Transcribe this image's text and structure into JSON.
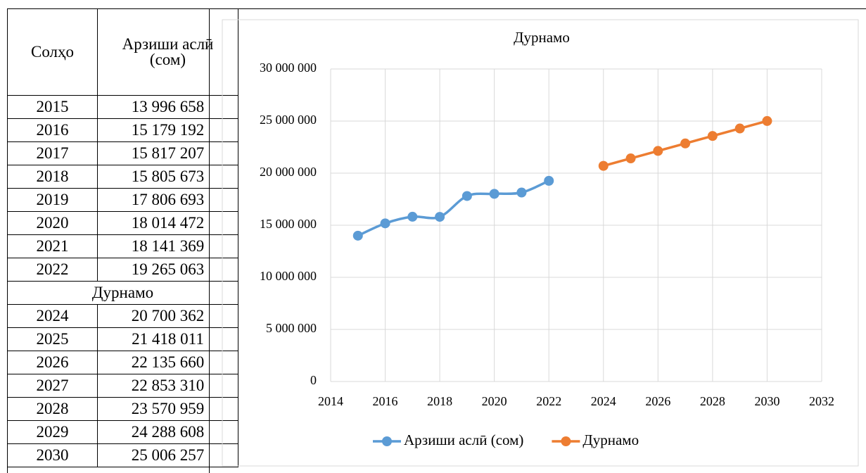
{
  "table": {
    "header": [
      "Солҳо",
      "Арзиши аслӣ (сом)"
    ],
    "rows": [
      [
        "2015",
        "13 996 658"
      ],
      [
        "2016",
        "15 179 192"
      ],
      [
        "2017",
        "15 817 207"
      ],
      [
        "2018",
        "15 805 673"
      ],
      [
        "2019",
        "17 806 693"
      ],
      [
        "2020",
        "18 014 472"
      ],
      [
        "2021",
        "18 141 369"
      ],
      [
        "2022",
        "19 265 063"
      ]
    ],
    "section": "Дурнамо",
    "forecast_rows": [
      [
        "2024",
        "20 700 362"
      ],
      [
        "2025",
        "21 418 011"
      ],
      [
        "2026",
        "22 135 660"
      ],
      [
        "2027",
        "22 853 310"
      ],
      [
        "2028",
        "23 570 959"
      ],
      [
        "2029",
        "24 288 608"
      ],
      [
        "2030",
        "25 006 257"
      ]
    ]
  },
  "chart_data": {
    "type": "line",
    "title": "Дурнамо",
    "xlim": [
      2014,
      2032
    ],
    "xticks": [
      2014,
      2016,
      2018,
      2020,
      2022,
      2024,
      2026,
      2028,
      2030,
      2032
    ],
    "ylim": [
      0,
      30000000
    ],
    "yticks": [
      0,
      {
        "value": 5000000,
        "label": "5 000 000"
      },
      {
        "value": 10000000,
        "label": "10 000 000"
      },
      {
        "value": 15000000,
        "label": "15 000 000"
      },
      {
        "value": 20000000,
        "label": "20 000 000"
      },
      {
        "value": 25000000,
        "label": "25 000 000"
      },
      {
        "value": 30000000,
        "label": "30 000 000"
      }
    ],
    "grid": true,
    "legend": "bottom",
    "smooth": true,
    "series": [
      {
        "name": "Арзиши аслӣ (сом)",
        "color": "#5b9bd5",
        "x": [
          2015,
          2016,
          2017,
          2018,
          2019,
          2020,
          2021,
          2022
        ],
        "values": [
          13996658,
          15179192,
          15817207,
          15805673,
          17806693,
          18014472,
          18141369,
          19265063
        ]
      },
      {
        "name": "Дурнамо",
        "color": "#ed7d31",
        "x": [
          2024,
          2025,
          2026,
          2027,
          2028,
          2029,
          2030
        ],
        "values": [
          20700362,
          21418011,
          22135660,
          22853310,
          23570959,
          24288608,
          25006257
        ]
      }
    ]
  }
}
